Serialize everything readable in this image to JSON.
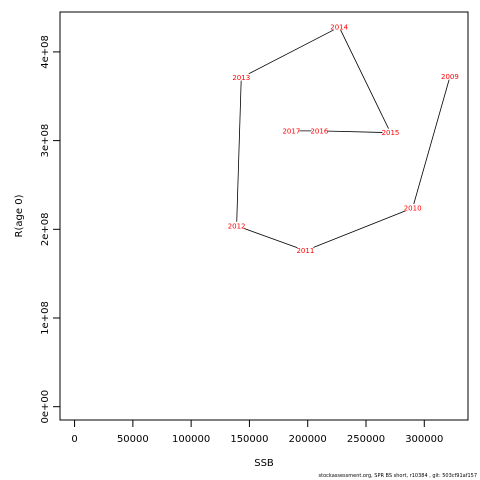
{
  "chart_data": {
    "type": "line",
    "xlabel": "SSB",
    "ylabel": "R(age 0)",
    "xlim": [
      -12500,
      337500
    ],
    "ylim": [
      -15000000,
      445000000
    ],
    "x_ticks": [
      0,
      50000,
      100000,
      150000,
      200000,
      250000,
      300000
    ],
    "x_tick_labels": [
      "0",
      "50000",
      "100000",
      "150000",
      "200000",
      "250000",
      "300000"
    ],
    "y_ticks": [
      0,
      100000000,
      200000000,
      300000000,
      400000000
    ],
    "y_tick_labels": [
      "0e+00",
      "1e+08",
      "2e+08",
      "3e+08",
      "4e+08"
    ],
    "line_color": "#000000",
    "label_color": "#ff0000",
    "points": [
      {
        "label": "2009",
        "x": 322000,
        "y": 372000000
      },
      {
        "label": "2010",
        "x": 290000,
        "y": 224000000
      },
      {
        "label": "2011",
        "x": 198000,
        "y": 176000000
      },
      {
        "label": "2012",
        "x": 139000,
        "y": 204000000
      },
      {
        "label": "2013",
        "x": 143000,
        "y": 371000000
      },
      {
        "label": "2014",
        "x": 227000,
        "y": 428000000
      },
      {
        "label": "2015",
        "x": 271000,
        "y": 309000000
      },
      {
        "label": "2016",
        "x": 210000,
        "y": 311000000
      },
      {
        "label": "2017",
        "x": 186000,
        "y": 311000000
      }
    ]
  },
  "footer": "stockassessment.org, SPR BS short, r10384 , git: 503cf91af157"
}
